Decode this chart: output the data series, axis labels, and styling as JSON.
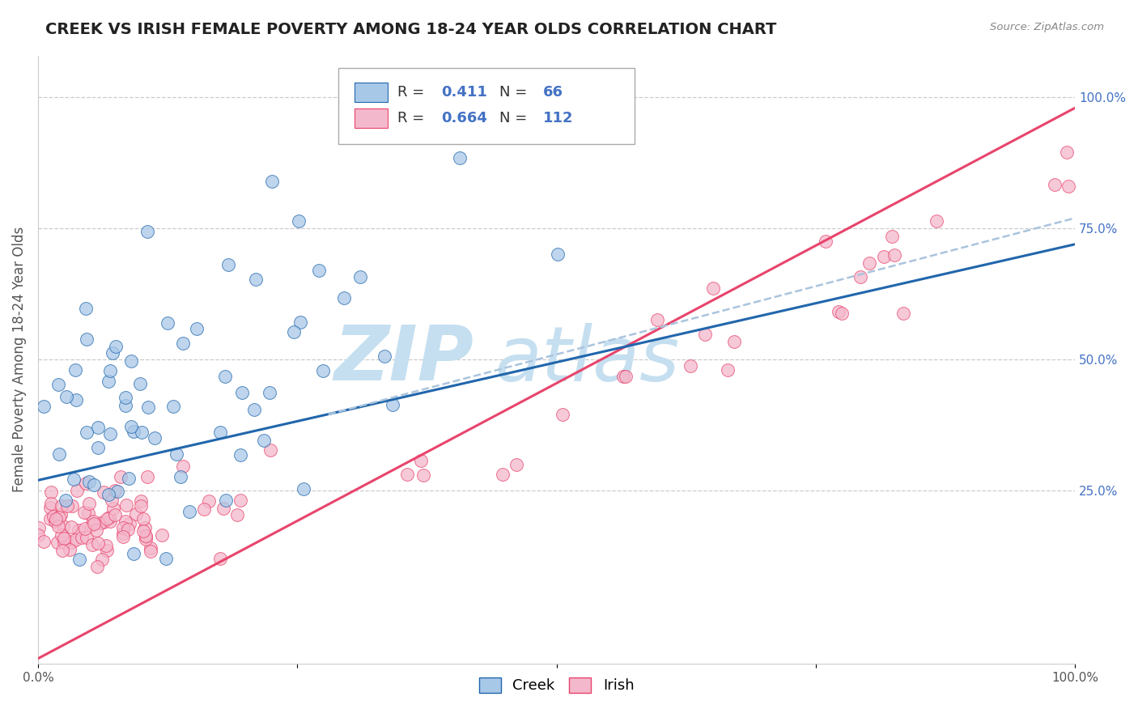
{
  "title": "CREEK VS IRISH FEMALE POVERTY AMONG 18-24 YEAR OLDS CORRELATION CHART",
  "source": "Source: ZipAtlas.com",
  "ylabel": "Female Poverty Among 18-24 Year Olds",
  "creek_R": 0.411,
  "creek_N": 66,
  "irish_R": 0.664,
  "irish_N": 112,
  "creek_color": "#a8c8e8",
  "irish_color": "#f4b8cc",
  "creek_line_color": "#2166ac",
  "irish_line_color": "#e8446c",
  "dashed_line_color": "#aac4dd",
  "watermark_color_zip": "#c5dff0",
  "watermark_color_atlas": "#c5dff0",
  "background_color": "#ffffff",
  "grid_color": "#cccccc",
  "right_tick_color": "#4472c4",
  "title_color": "#222222",
  "source_color": "#888888",
  "xlim": [
    0.0,
    1.0
  ],
  "ylim": [
    -0.08,
    1.08
  ],
  "x_ticks": [
    0.0,
    0.25,
    0.5,
    0.75,
    1.0
  ],
  "x_tick_labels": [
    "0.0%",
    "",
    "",
    "",
    "100.0%"
  ],
  "y_ticks_right": [
    0.25,
    0.5,
    0.75,
    1.0
  ],
  "y_tick_labels_right": [
    "25.0%",
    "50.0%",
    "75.0%",
    "100.0%"
  ],
  "title_fontsize": 14,
  "label_fontsize": 12,
  "tick_fontsize": 11,
  "legend_fontsize": 13
}
